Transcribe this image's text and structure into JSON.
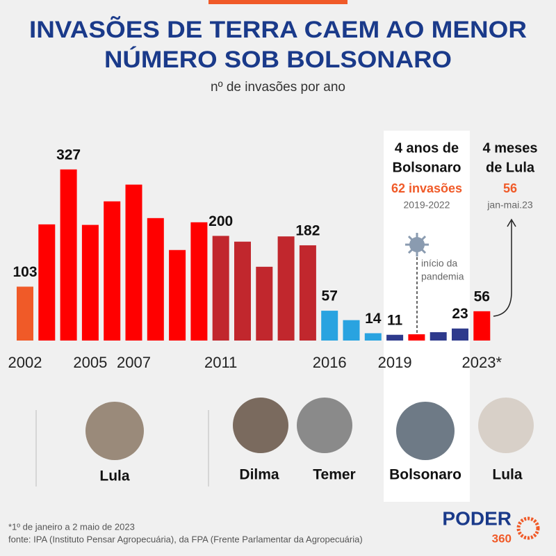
{
  "chart_data": {
    "type": "bar",
    "title": [
      "INVASÕES DE TERRA CAEM AO MENOR",
      "NÚMERO SOB BOLSONARO"
    ],
    "subtitle": "nº de invasões por ano",
    "categories": [
      "2002",
      null,
      null,
      "2005",
      null,
      "2007",
      null,
      null,
      null,
      "2011",
      null,
      null,
      null,
      null,
      "2016",
      null,
      null,
      "2019",
      null,
      null,
      null,
      "2023*"
    ],
    "values": [
      103,
      222,
      327,
      221,
      266,
      298,
      234,
      173,
      226,
      200,
      189,
      141,
      199,
      182,
      57,
      39,
      14,
      11,
      12,
      16,
      23,
      56
    ],
    "value_labels": [
      "103",
      null,
      "327",
      null,
      null,
      null,
      null,
      null,
      null,
      "200",
      null,
      null,
      null,
      "182",
      "57",
      null,
      "14",
      "11",
      null,
      null,
      "23",
      "56"
    ],
    "colors": [
      "#f05a28",
      "#ff0000",
      "#ff0000",
      "#ff0000",
      "#ff0000",
      "#ff0000",
      "#ff0000",
      "#ff0000",
      "#ff0000",
      "#c1272d",
      "#c1272d",
      "#c1272d",
      "#c1272d",
      "#c1272d",
      "#29a3e0",
      "#29a3e0",
      "#29a3e0",
      "#2e3a8c",
      "#ff0000",
      "#2e3a8c",
      "#2e3a8c",
      "#ff0000"
    ],
    "ylim": [
      0,
      340
    ],
    "annotations": {
      "bolsonaro": [
        "4 anos de",
        "Bolsonaro"
      ],
      "bolsonaro_total": "62 invasões",
      "bolsonaro_period": "2019-2022",
      "lula": [
        "4 meses",
        "de Lula"
      ],
      "lula_total": "56",
      "lula_period": "jan-mai.23",
      "pandemic": [
        "início da",
        "pandemia"
      ]
    },
    "presidents": [
      "Lula",
      "Dilma",
      "Temer",
      "Bolsonaro",
      "Lula"
    ],
    "footnotes": [
      "*1º de janeiro a 2 maio de 2023",
      "fonte: IPA (Instituto Pensar Agropecuária), da FPA (Frente Parlamentar da Agropecuária)"
    ],
    "logo": [
      "PODER",
      "360"
    ]
  }
}
